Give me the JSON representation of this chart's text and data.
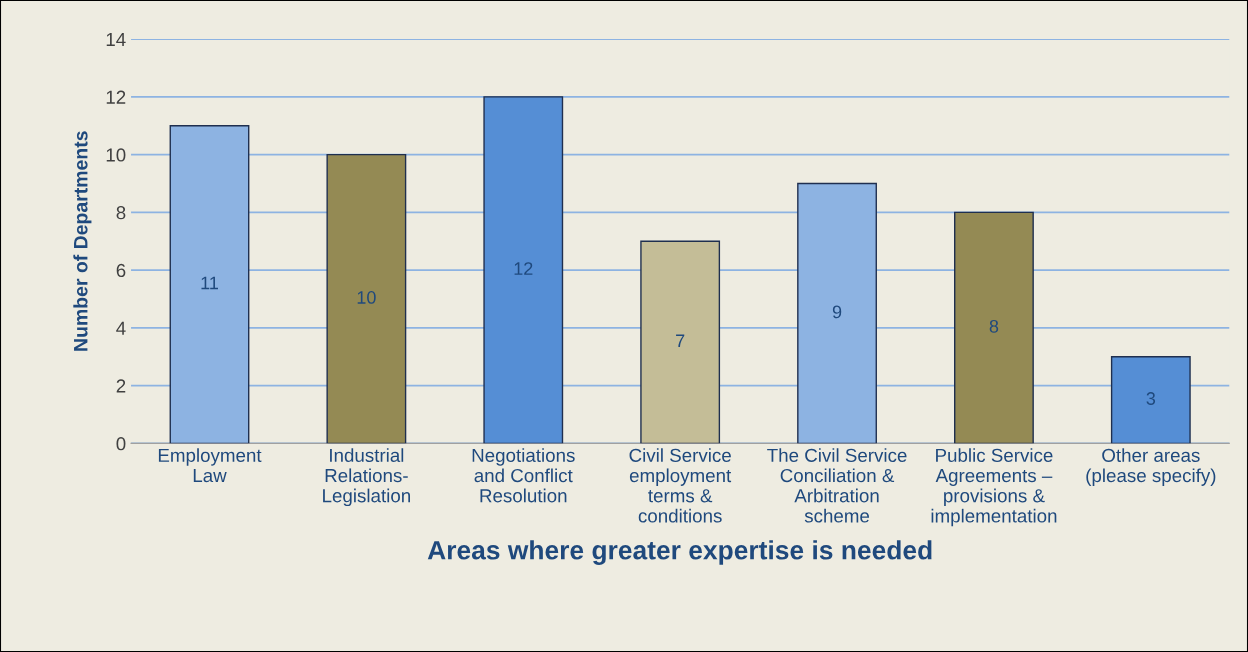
{
  "chart_data": {
    "type": "bar",
    "xlabel": "Areas where greater expertise is needed",
    "ylabel": "Number of Departments",
    "categories": [
      "Employment\nLaw",
      "Industrial\nRelations-\nLegislation",
      "Negotiations\nand Conflict\nResolution",
      "Civil Service\nemployment\nterms &\nconditions",
      "The Civil Service\nConciliation &\nArbitration\nscheme",
      "Public Service\nAgreements –\nprovisions &\nimplementation",
      "Other areas\n(please specify)"
    ],
    "values": [
      11,
      10,
      12,
      7,
      9,
      8,
      3
    ],
    "colors": [
      "#8db3e2",
      "#948a54",
      "#558ed5",
      "#c4bd97",
      "#8db3e2",
      "#948a54",
      "#558ed5"
    ],
    "ylim": [
      0,
      14
    ],
    "yticks": [
      0,
      2,
      4,
      6,
      8,
      10,
      12,
      14
    ],
    "grid": "y",
    "data_labels": true
  }
}
